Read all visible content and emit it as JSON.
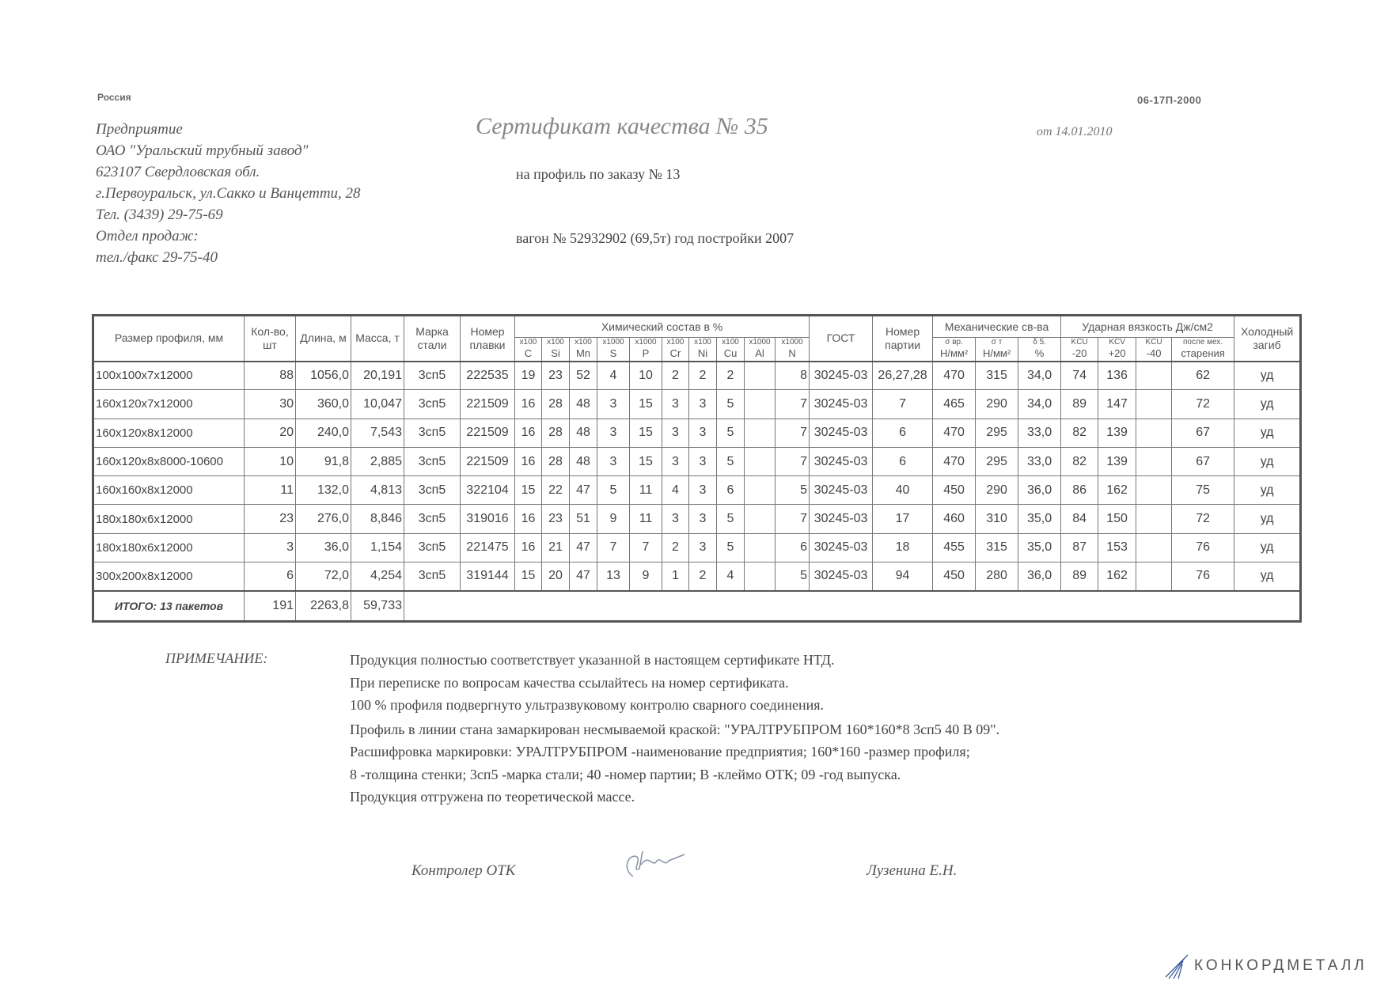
{
  "header": {
    "country": "Россия",
    "doc_code": "06-17П-2000",
    "company_lines": [
      "Предприятие",
      "ОАО \"Уральский трубный завод\"",
      "623107 Свердловская обл.",
      "г.Первоуральск, ул.Сакко и Ванцетти, 28",
      "Тел. (3439) 29-75-69",
      "Отдел продаж:",
      "тел./факс  29-75-40"
    ],
    "title": "Сертификат качества  № 35",
    "date": "от 14.01.2010",
    "order": "на профиль по заказу № 13",
    "wagon": "вагон № 52932902 (69,5т) год постройки 2007"
  },
  "table": {
    "headers": {
      "size": "Размер профиля, мм",
      "qty": "Кол-во, шт",
      "length": "Длина, м",
      "mass": "Масса, т",
      "grade": "Марка стали",
      "heat": "Номер плавки",
      "chem": "Химический состав  в %",
      "chem_cols": [
        {
          "mult": "x100",
          "el": "C"
        },
        {
          "mult": "x100",
          "el": "Si"
        },
        {
          "mult": "x100",
          "el": "Mn"
        },
        {
          "mult": "x1000",
          "el": "S"
        },
        {
          "mult": "x1000",
          "el": "P"
        },
        {
          "mult": "x100",
          "el": "Cr"
        },
        {
          "mult": "x100",
          "el": "Ni"
        },
        {
          "mult": "x100",
          "el": "Cu"
        },
        {
          "mult": "x1000",
          "el": "Al"
        },
        {
          "mult": "x1000",
          "el": "N"
        }
      ],
      "gost": "ГОСТ",
      "batch": "Номер партии",
      "mech": "Механические св-ва",
      "mech_cols": [
        {
          "top": "σ вр.",
          "unit": "Н/мм²"
        },
        {
          "top": "σ т",
          "unit": "Н/мм²"
        },
        {
          "top": "δ 5.",
          "unit": "%"
        }
      ],
      "impact": "Ударная вязкость Дж/см2",
      "impact_cols": [
        {
          "top": "KCU",
          "unit": "-20"
        },
        {
          "top": "KCV",
          "unit": "+20"
        },
        {
          "top": "KCU",
          "unit": "-40"
        },
        {
          "top": "после мех.",
          "unit": "старения"
        }
      ],
      "bend": "Холодный загиб"
    },
    "rows": [
      [
        "100x100x7x12000",
        "88",
        "1056,0",
        "20,191",
        "3сп5",
        "222535",
        "19",
        "23",
        "52",
        "4",
        "10",
        "2",
        "2",
        "2",
        "",
        "8",
        "30245-03",
        "26,27,28",
        "470",
        "315",
        "34,0",
        "74",
        "136",
        "",
        "62",
        "уд"
      ],
      [
        "160x120x7x12000",
        "30",
        "360,0",
        "10,047",
        "3сп5",
        "221509",
        "16",
        "28",
        "48",
        "3",
        "15",
        "3",
        "3",
        "5",
        "",
        "7",
        "30245-03",
        "7",
        "465",
        "290",
        "34,0",
        "89",
        "147",
        "",
        "72",
        "уд"
      ],
      [
        "160x120x8x12000",
        "20",
        "240,0",
        "7,543",
        "3сп5",
        "221509",
        "16",
        "28",
        "48",
        "3",
        "15",
        "3",
        "3",
        "5",
        "",
        "7",
        "30245-03",
        "6",
        "470",
        "295",
        "33,0",
        "82",
        "139",
        "",
        "67",
        "уд"
      ],
      [
        "160x120x8x8000-10600",
        "10",
        "91,8",
        "2,885",
        "3сп5",
        "221509",
        "16",
        "28",
        "48",
        "3",
        "15",
        "3",
        "3",
        "5",
        "",
        "7",
        "30245-03",
        "6",
        "470",
        "295",
        "33,0",
        "82",
        "139",
        "",
        "67",
        "уд"
      ],
      [
        "160x160x8x12000",
        "11",
        "132,0",
        "4,813",
        "3сп5",
        "322104",
        "15",
        "22",
        "47",
        "5",
        "11",
        "4",
        "3",
        "6",
        "",
        "5",
        "30245-03",
        "40",
        "450",
        "290",
        "36,0",
        "86",
        "162",
        "",
        "75",
        "уд"
      ],
      [
        "180x180x6x12000",
        "23",
        "276,0",
        "8,846",
        "3сп5",
        "319016",
        "16",
        "23",
        "51",
        "9",
        "11",
        "3",
        "3",
        "5",
        "",
        "7",
        "30245-03",
        "17",
        "460",
        "310",
        "35,0",
        "84",
        "150",
        "",
        "72",
        "уд"
      ],
      [
        "180x180x6x12000",
        "3",
        "36,0",
        "1,154",
        "3сп5",
        "221475",
        "16",
        "21",
        "47",
        "7",
        "7",
        "2",
        "3",
        "5",
        "",
        "6",
        "30245-03",
        "18",
        "455",
        "315",
        "35,0",
        "87",
        "153",
        "",
        "76",
        "уд"
      ],
      [
        "300x200x8x12000",
        "6",
        "72,0",
        "4,254",
        "3сп5",
        "319144",
        "15",
        "20",
        "47",
        "13",
        "9",
        "1",
        "2",
        "4",
        "",
        "5",
        "30245-03",
        "94",
        "450",
        "280",
        "36,0",
        "89",
        "162",
        "",
        "76",
        "уд"
      ]
    ],
    "total": {
      "label": "ИТОГО: 13 пакетов",
      "qty": "191",
      "length": "2263,8",
      "mass": "59,733"
    }
  },
  "notes": {
    "label": "ПРИМЕЧАНИЕ:",
    "lines": [
      "Продукция полностью соответствует указанной в настоящем сертификате НТД.",
      "При переписке по вопросам качества ссылайтесь на номер сертификата.",
      "100 % профиля подвергнуто ультразвуковому контролю сварного соединения.",
      "Профиль в линии стана замаркирован несмываемой краской: \"УРАЛТРУБПРОМ  160*160*8  3сп5  40  В  09\".",
      "Расшифровка маркировки: УРАЛТРУБПРОМ -наименование предприятия; 160*160 -размер профиля;",
      "8 -толщина стенки; 3сп5 -марка стали; 40 -номер партии; В -клеймо ОТК; 09 -год выпуска.",
      "Продукция отгружена по теоретической массе."
    ]
  },
  "signatures": {
    "controller": "Контролер ОТК",
    "inspector": "Лузенина Е.Н."
  },
  "logo": {
    "text": "КОНКОРДМЕТАЛЛ",
    "color": "#3a5a9a"
  }
}
